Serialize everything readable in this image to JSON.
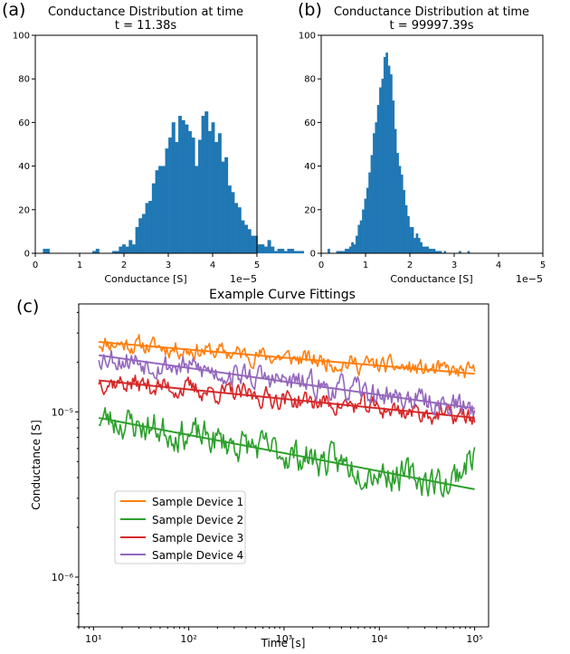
{
  "panel_labels": [
    "(a)",
    "(b)",
    "(c)"
  ],
  "colors": {
    "hist": "#1f77b4",
    "device1": "#ff7f0e",
    "device2": "#2ca02c",
    "device3": "#d62728",
    "device4": "#9467bd"
  },
  "chart_data": [
    {
      "type": "bar",
      "panel": "(a)",
      "title": [
        "Conductance Distribution at time",
        "t = 11.38s"
      ],
      "xlabel": "Conductance [S]",
      "ylabel": "",
      "x_offset_text": "1e−5",
      "xlim": [
        0,
        5
      ],
      "ylim": [
        0,
        100
      ],
      "xticks": [
        0,
        1,
        2,
        3,
        4,
        5
      ],
      "yticks": [
        0,
        20,
        40,
        60,
        80,
        100
      ],
      "bin_start": 0.1,
      "bin_width": 0.0745,
      "values": [
        0,
        2,
        2,
        0,
        0,
        0,
        0,
        0,
        0,
        0,
        0,
        0,
        0,
        0,
        0,
        0,
        1,
        2,
        0,
        0,
        0,
        0,
        1,
        1,
        3,
        4,
        3,
        6,
        4,
        12,
        16,
        18,
        23,
        24,
        32,
        38,
        40,
        40,
        48,
        53,
        60,
        51,
        63,
        61,
        59,
        56,
        53,
        40,
        52,
        63,
        65,
        56,
        60,
        51,
        55,
        42,
        44,
        31,
        28,
        23,
        21,
        15,
        13,
        11,
        8,
        8,
        4,
        4,
        3,
        6,
        3,
        1,
        2,
        2,
        1,
        2,
        2,
        1,
        1,
        1,
        0,
        0,
        0,
        0,
        0,
        0,
        0,
        0,
        0,
        0,
        0,
        0,
        0,
        0,
        0,
        0,
        0,
        0,
        0,
        0
      ]
    },
    {
      "type": "bar",
      "panel": "(b)",
      "title": [
        "Conductance Distribution at time",
        "t = 99997.39s"
      ],
      "xlabel": "Conductance [S]",
      "ylabel": "",
      "x_offset_text": "1e−5",
      "xlim": [
        0,
        5
      ],
      "ylim": [
        0,
        100
      ],
      "xticks": [
        0,
        1,
        2,
        3,
        4,
        5
      ],
      "yticks": [
        0,
        20,
        40,
        60,
        80,
        100
      ],
      "bin_start": 0.1,
      "bin_width": 0.0485,
      "values": [
        0,
        2,
        0,
        0,
        0,
        1,
        1,
        1,
        1,
        2,
        2,
        3,
        5,
        4,
        8,
        13,
        15,
        20,
        25,
        30,
        37,
        45,
        55,
        60,
        68,
        76,
        80,
        90,
        92,
        86,
        82,
        70,
        57,
        46,
        40,
        36,
        29,
        22,
        17,
        12,
        12,
        7,
        9,
        7,
        5,
        3,
        3,
        3,
        2,
        2,
        2,
        1,
        1,
        1,
        0,
        1,
        0,
        0,
        0,
        0,
        0,
        0,
        1,
        0,
        0,
        0,
        1,
        0,
        0,
        0,
        0,
        0,
        0,
        0,
        0,
        0,
        0,
        0,
        0,
        0,
        0,
        0,
        0,
        0,
        0,
        0,
        0,
        0,
        0,
        0,
        0,
        0,
        0,
        0,
        0,
        0,
        0,
        0,
        0,
        0
      ]
    },
    {
      "type": "line",
      "panel": "(c)",
      "title": "Example Curve Fittings",
      "xlabel": "Time [s]",
      "ylabel": "Conductance [S]",
      "x_scale": "log",
      "y_scale": "log",
      "xlim": [
        7,
        140000
      ],
      "ylim": [
        5e-07,
        4.5e-05
      ],
      "xtick_labels": [
        "10¹",
        "10²",
        "10³",
        "10⁴",
        "10⁵"
      ],
      "ytick_labels": [
        "10⁻⁵",
        "10⁻⁶"
      ],
      "legend_placement": "lower-left",
      "series": [
        {
          "name": "Sample Device 1",
          "color_key": "device1",
          "fit_start": 2.65e-05,
          "fit_end": 1.7e-05,
          "noise": 0.045,
          "seed": 11
        },
        {
          "name": "Sample Device 2",
          "color_key": "device2",
          "fit_start": 9.2e-06,
          "fit_end": 3.4e-06,
          "noise": 0.08,
          "seed": 23
        },
        {
          "name": "Sample Device 3",
          "color_key": "device3",
          "fit_start": 1.55e-05,
          "fit_end": 9.2e-06,
          "noise": 0.05,
          "seed": 37
        },
        {
          "name": "Sample Device 4",
          "color_key": "device4",
          "fit_start": 2.2e-05,
          "fit_end": 1.05e-05,
          "noise": 0.06,
          "seed": 53
        }
      ]
    }
  ]
}
